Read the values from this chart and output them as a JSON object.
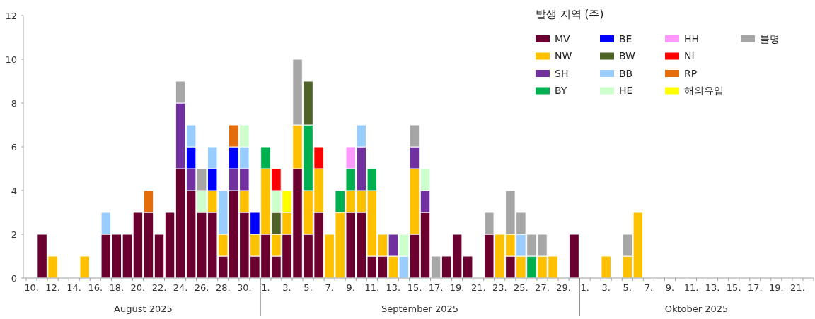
{
  "chart_data": {
    "type": "bar",
    "stacked": true,
    "categories": [
      "10.",
      null,
      "12.",
      null,
      "14.",
      null,
      "16.",
      null,
      "18.",
      null,
      "20.",
      null,
      "22.",
      null,
      "24.",
      null,
      "26.",
      null,
      "28.",
      null,
      "30.",
      null,
      "1.",
      null,
      "3.",
      null,
      "5.",
      null,
      "7.",
      null,
      "9.",
      null,
      "11.",
      null,
      "13.",
      null,
      "15.",
      null,
      "17.",
      null,
      "19.",
      null,
      "21.",
      null,
      "23.",
      null,
      "25.",
      null,
      "27.",
      null,
      "29.",
      null,
      "1.",
      null,
      "3.",
      null,
      "5.",
      null,
      "7.",
      null,
      "9.",
      null,
      "11.",
      null,
      "13.",
      null,
      "15.",
      null,
      "17.",
      null,
      "19.",
      null,
      "21.",
      null
    ],
    "ylim": [
      0,
      12
    ],
    "yticks": [
      0,
      2,
      4,
      6,
      8,
      10,
      12
    ],
    "legend": "top right",
    "legend_title": "발생 지역 (주)",
    "annotations": [
      "August 2025",
      "September 2025",
      "Oktober 2025"
    ],
    "series": [
      {
        "name": "MV",
        "color": "#6b0030",
        "values": [
          0,
          2,
          0,
          0,
          0,
          0,
          0,
          2,
          2,
          2,
          3,
          3,
          2,
          3,
          5,
          4,
          3,
          3,
          1,
          4,
          3,
          1,
          2,
          1,
          2,
          5,
          2,
          3,
          0,
          0,
          3,
          3,
          1,
          1,
          0,
          0,
          2,
          3,
          0,
          1,
          2,
          1,
          0,
          2,
          0,
          1,
          0,
          0,
          0,
          0,
          0,
          2,
          0,
          0,
          0,
          0,
          0,
          0,
          0,
          0,
          0,
          0,
          0,
          0,
          0,
          0,
          0,
          0,
          0,
          0,
          0,
          0,
          0,
          0
        ]
      },
      {
        "name": "NW",
        "color": "#ffc000",
        "values": [
          0,
          0,
          1,
          0,
          0,
          1,
          0,
          0,
          0,
          0,
          0,
          0,
          0,
          0,
          0,
          0,
          0,
          1,
          1,
          0,
          1,
          1,
          3,
          1,
          1,
          2,
          2,
          2,
          2,
          3,
          1,
          1,
          3,
          1,
          1,
          0,
          3,
          0,
          0,
          0,
          0,
          0,
          0,
          0,
          2,
          1,
          1,
          0,
          1,
          1,
          0,
          0,
          0,
          0,
          1,
          0,
          1,
          3,
          0,
          0,
          0,
          0,
          0,
          0,
          0,
          0,
          0,
          0,
          0,
          0,
          0,
          0,
          0,
          0
        ]
      },
      {
        "name": "SH",
        "color": "#7030a0",
        "values": [
          0,
          0,
          0,
          0,
          0,
          0,
          0,
          0,
          0,
          0,
          0,
          0,
          0,
          0,
          3,
          1,
          0,
          0,
          0,
          1,
          1,
          0,
          0,
          0,
          0,
          0,
          0,
          0,
          0,
          0,
          0,
          2,
          0,
          0,
          1,
          0,
          1,
          1,
          0,
          0,
          0,
          0,
          0,
          0,
          0,
          0,
          0,
          0,
          0,
          0,
          0,
          0,
          0,
          0,
          0,
          0,
          0,
          0,
          0,
          0,
          0,
          0,
          0,
          0,
          0,
          0,
          0,
          0,
          0,
          0,
          0,
          0,
          0,
          0
        ]
      },
      {
        "name": "BY",
        "color": "#00b050",
        "values": [
          0,
          0,
          0,
          0,
          0,
          0,
          0,
          0,
          0,
          0,
          0,
          0,
          0,
          0,
          0,
          0,
          0,
          0,
          0,
          0,
          0,
          0,
          1,
          0,
          0,
          0,
          3,
          0,
          0,
          1,
          1,
          0,
          1,
          0,
          0,
          0,
          0,
          0,
          0,
          0,
          0,
          0,
          0,
          0,
          0,
          0,
          0,
          1,
          0,
          0,
          0,
          0,
          0,
          0,
          0,
          0,
          0,
          0,
          0,
          0,
          0,
          0,
          0,
          0,
          0,
          0,
          0,
          0,
          0,
          0,
          0,
          0,
          0,
          0
        ]
      },
      {
        "name": "BE",
        "color": "#0000ff",
        "values": [
          0,
          0,
          0,
          0,
          0,
          0,
          0,
          0,
          0,
          0,
          0,
          0,
          0,
          0,
          0,
          1,
          0,
          1,
          0,
          1,
          0,
          1,
          0,
          0,
          0,
          0,
          0,
          0,
          0,
          0,
          0,
          0,
          0,
          0,
          0,
          0,
          0,
          0,
          0,
          0,
          0,
          0,
          0,
          0,
          0,
          0,
          0,
          0,
          0,
          0,
          0,
          0,
          0,
          0,
          0,
          0,
          0,
          0,
          0,
          0,
          0,
          0,
          0,
          0,
          0,
          0,
          0,
          0,
          0,
          0,
          0,
          0,
          0,
          0
        ]
      },
      {
        "name": "BW",
        "color": "#4f6228",
        "values": [
          0,
          0,
          0,
          0,
          0,
          0,
          0,
          0,
          0,
          0,
          0,
          0,
          0,
          0,
          0,
          0,
          0,
          0,
          0,
          0,
          0,
          0,
          0,
          1,
          0,
          0,
          2,
          0,
          0,
          0,
          0,
          0,
          0,
          0,
          0,
          0,
          0,
          0,
          0,
          0,
          0,
          0,
          0,
          0,
          0,
          0,
          0,
          0,
          0,
          0,
          0,
          0,
          0,
          0,
          0,
          0,
          0,
          0,
          0,
          0,
          0,
          0,
          0,
          0,
          0,
          0,
          0,
          0,
          0,
          0,
          0,
          0,
          0,
          0
        ]
      },
      {
        "name": "BB",
        "color": "#99ccff",
        "values": [
          0,
          0,
          0,
          0,
          0,
          0,
          0,
          1,
          0,
          0,
          0,
          0,
          0,
          0,
          0,
          1,
          0,
          1,
          2,
          0,
          1,
          0,
          0,
          0,
          0,
          0,
          0,
          0,
          0,
          0,
          0,
          1,
          0,
          0,
          0,
          1,
          0,
          0,
          0,
          0,
          0,
          0,
          0,
          0,
          0,
          0,
          1,
          0,
          0,
          0,
          0,
          0,
          0,
          0,
          0,
          0,
          0,
          0,
          0,
          0,
          0,
          0,
          0,
          0,
          0,
          0,
          0,
          0,
          0,
          0,
          0,
          0,
          0,
          0
        ]
      },
      {
        "name": "HE",
        "color": "#ccffcc",
        "values": [
          0,
          0,
          0,
          0,
          0,
          0,
          0,
          0,
          0,
          0,
          0,
          0,
          0,
          0,
          0,
          0,
          1,
          0,
          0,
          0,
          1,
          0,
          0,
          1,
          0,
          0,
          0,
          0,
          0,
          0,
          0,
          0,
          0,
          0,
          0,
          1,
          0,
          1,
          0,
          0,
          0,
          0,
          0,
          0,
          0,
          0,
          0,
          0,
          0,
          0,
          0,
          0,
          0,
          0,
          0,
          0,
          0,
          0,
          0,
          0,
          0,
          0,
          0,
          0,
          0,
          0,
          0,
          0,
          0,
          0,
          0,
          0,
          0,
          0
        ]
      },
      {
        "name": "HH",
        "color": "#ff99ff",
        "values": [
          0,
          0,
          0,
          0,
          0,
          0,
          0,
          0,
          0,
          0,
          0,
          0,
          0,
          0,
          0,
          0,
          0,
          0,
          0,
          0,
          0,
          0,
          0,
          0,
          0,
          0,
          0,
          0,
          0,
          0,
          1,
          0,
          0,
          0,
          0,
          0,
          0,
          0,
          0,
          0,
          0,
          0,
          0,
          0,
          0,
          0,
          0,
          0,
          0,
          0,
          0,
          0,
          0,
          0,
          0,
          0,
          0,
          0,
          0,
          0,
          0,
          0,
          0,
          0,
          0,
          0,
          0,
          0,
          0,
          0,
          0,
          0,
          0,
          0
        ]
      },
      {
        "name": "NI",
        "color": "#ff0000",
        "values": [
          0,
          0,
          0,
          0,
          0,
          0,
          0,
          0,
          0,
          0,
          0,
          0,
          0,
          0,
          0,
          0,
          0,
          0,
          0,
          0,
          0,
          0,
          0,
          1,
          0,
          0,
          0,
          1,
          0,
          0,
          0,
          0,
          0,
          0,
          0,
          0,
          0,
          0,
          0,
          0,
          0,
          0,
          0,
          0,
          0,
          0,
          0,
          0,
          0,
          0,
          0,
          0,
          0,
          0,
          0,
          0,
          0,
          0,
          0,
          0,
          0,
          0,
          0,
          0,
          0,
          0,
          0,
          0,
          0,
          0,
          0,
          0,
          0,
          0
        ]
      },
      {
        "name": "RP",
        "color": "#e46c0a",
        "values": [
          0,
          0,
          0,
          0,
          0,
          0,
          0,
          0,
          0,
          0,
          0,
          1,
          0,
          0,
          0,
          0,
          0,
          0,
          0,
          1,
          0,
          0,
          0,
          0,
          0,
          0,
          0,
          0,
          0,
          0,
          0,
          0,
          0,
          0,
          0,
          0,
          0,
          0,
          0,
          0,
          0,
          0,
          0,
          0,
          0,
          0,
          0,
          0,
          0,
          0,
          0,
          0,
          0,
          0,
          0,
          0,
          0,
          0,
          0,
          0,
          0,
          0,
          0,
          0,
          0,
          0,
          0,
          0,
          0,
          0,
          0,
          0,
          0,
          0
        ]
      },
      {
        "name": "해외유입",
        "color": "#ffff00",
        "values": [
          0,
          0,
          0,
          0,
          0,
          0,
          0,
          0,
          0,
          0,
          0,
          0,
          0,
          0,
          0,
          0,
          0,
          0,
          0,
          0,
          0,
          0,
          0,
          0,
          1,
          0,
          0,
          0,
          0,
          0,
          0,
          0,
          0,
          0,
          0,
          0,
          0,
          0,
          0,
          0,
          0,
          0,
          0,
          0,
          0,
          0,
          0,
          0,
          0,
          0,
          0,
          0,
          0,
          0,
          0,
          0,
          0,
          0,
          0,
          0,
          0,
          0,
          0,
          0,
          0,
          0,
          0,
          0,
          0,
          0,
          0,
          0,
          0,
          0
        ]
      },
      {
        "name": "불명",
        "color": "#a6a6a6",
        "values": [
          0,
          0,
          0,
          0,
          0,
          0,
          0,
          0,
          0,
          0,
          0,
          0,
          0,
          0,
          1,
          0,
          1,
          0,
          0,
          0,
          0,
          0,
          0,
          0,
          0,
          3,
          0,
          0,
          0,
          0,
          0,
          0,
          0,
          0,
          0,
          0,
          1,
          0,
          1,
          0,
          0,
          0,
          0,
          1,
          0,
          2,
          1,
          1,
          1,
          0,
          0,
          0,
          0,
          0,
          0,
          0,
          1,
          0,
          0,
          0,
          0,
          0,
          0,
          0,
          0,
          0,
          0,
          0,
          0,
          0,
          0,
          0,
          0,
          0
        ]
      }
    ]
  }
}
